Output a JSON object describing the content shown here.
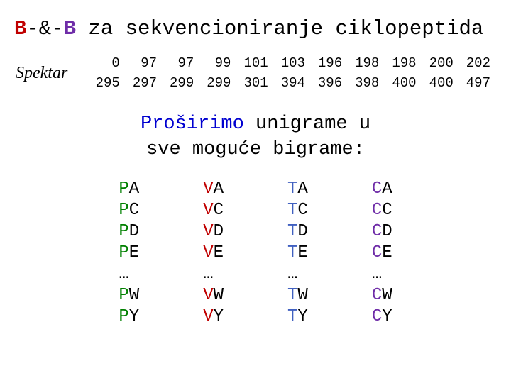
{
  "title": {
    "pre": "B",
    "mid": "-&-",
    "post": "B",
    "rest": " za sekvencioniranje ciklopeptida"
  },
  "spektar_label": "Spektar",
  "spectrum": {
    "row1": [
      "0",
      "97",
      "97",
      "99",
      "101",
      "103",
      "196",
      "198",
      "198",
      "200",
      "202"
    ],
    "row2": [
      "295",
      "297",
      "299",
      "299",
      "301",
      "394",
      "396",
      "398",
      "400",
      "400",
      "497"
    ]
  },
  "subtitle": {
    "highlight": "Proširimo",
    "rest1": " unigrame u",
    "line2": "sve moguće bigrame:"
  },
  "colors": {
    "red": "#c00000",
    "purple": "#6f2da8",
    "blue": "#0000d0",
    "p": "#008000",
    "v": "#c00000",
    "t": "#4060c0",
    "c": "#6f2da8"
  },
  "bigrams": {
    "initials": [
      "P",
      "V",
      "T",
      "C"
    ],
    "initial_classes": [
      "p",
      "v",
      "t",
      "c"
    ],
    "suffixes_top": [
      "A",
      "C",
      "D",
      "E"
    ],
    "suffixes_bottom": [
      "W",
      "Y"
    ],
    "ellipsis": "…"
  }
}
